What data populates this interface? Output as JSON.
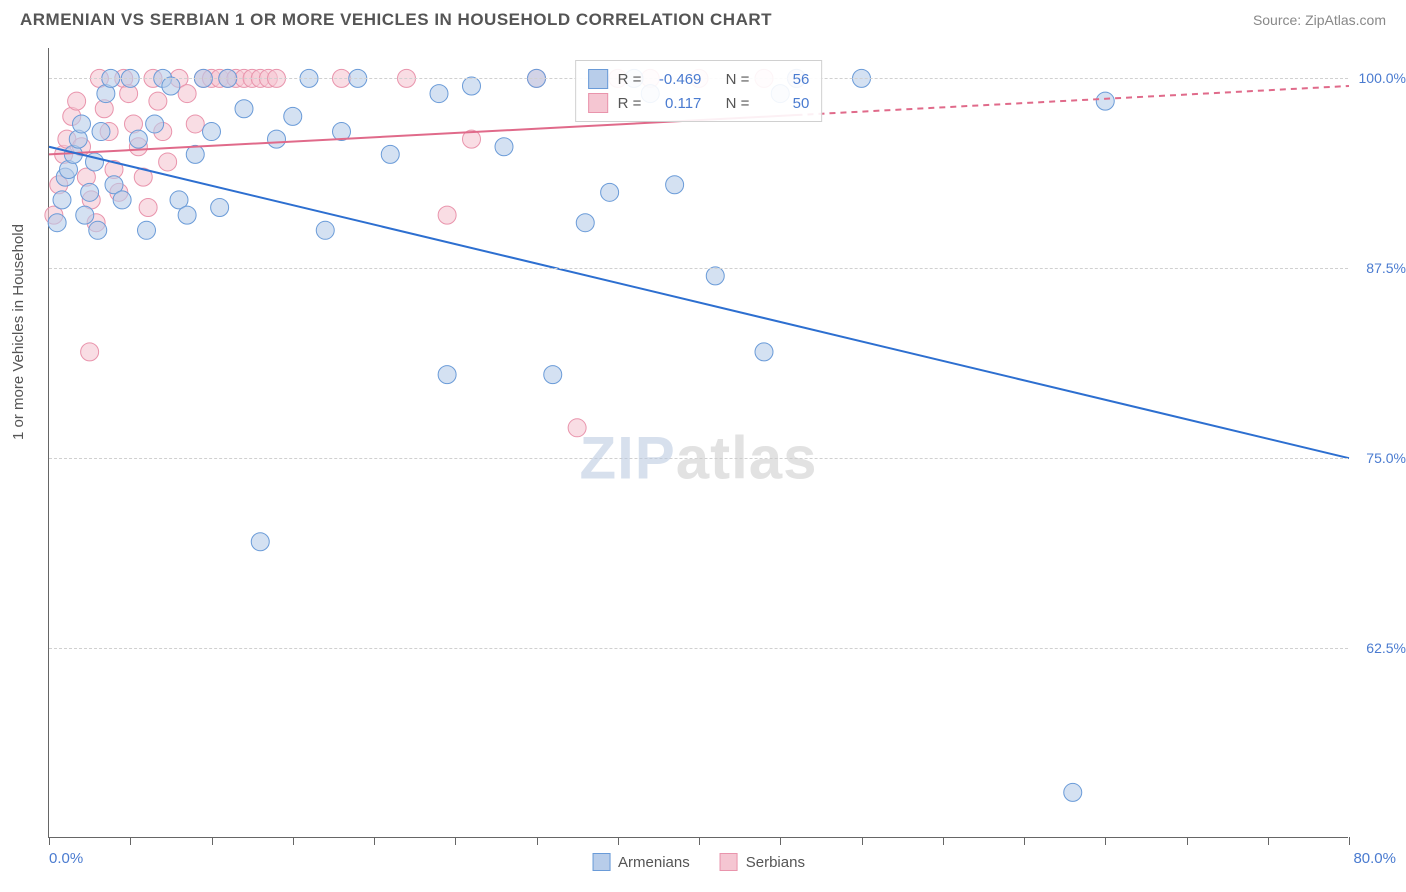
{
  "header": {
    "title": "ARMENIAN VS SERBIAN 1 OR MORE VEHICLES IN HOUSEHOLD CORRELATION CHART",
    "source": "Source: ZipAtlas.com"
  },
  "chart": {
    "type": "scatter",
    "ylabel": "1 or more Vehicles in Household",
    "xlim": [
      0,
      80
    ],
    "ylim": [
      50,
      102
    ],
    "xlabel_min": "0.0%",
    "xlabel_max": "80.0%",
    "yticks": [
      {
        "v": 62.5,
        "label": "62.5%"
      },
      {
        "v": 75.0,
        "label": "75.0%"
      },
      {
        "v": 87.5,
        "label": "87.5%"
      },
      {
        "v": 100.0,
        "label": "100.0%"
      }
    ],
    "xticks": [
      0,
      5,
      10,
      15,
      20,
      25,
      30,
      35,
      40,
      45,
      50,
      55,
      60,
      65,
      70,
      75,
      80
    ],
    "grid_color": "#d0d0d0",
    "background_color": "#ffffff",
    "watermark_zip": "ZIP",
    "watermark_atlas": "atlas",
    "series": {
      "armenians": {
        "label": "Armenians",
        "color_fill": "#b8cdea",
        "color_stroke": "#6a9bd8",
        "r_value": "-0.469",
        "n_value": "56",
        "trend": {
          "x1": 0,
          "y1": 95.5,
          "x2": 80,
          "y2": 75.0,
          "solid_to_x": 80
        },
        "points": [
          [
            0.5,
            90.5
          ],
          [
            0.8,
            92.0
          ],
          [
            1.0,
            93.5
          ],
          [
            1.2,
            94.0
          ],
          [
            1.5,
            95.0
          ],
          [
            1.8,
            96.0
          ],
          [
            2.0,
            97.0
          ],
          [
            2.2,
            91.0
          ],
          [
            2.5,
            92.5
          ],
          [
            2.8,
            94.5
          ],
          [
            3.0,
            90.0
          ],
          [
            3.2,
            96.5
          ],
          [
            3.5,
            99.0
          ],
          [
            3.8,
            100.0
          ],
          [
            4.0,
            93.0
          ],
          [
            4.5,
            92.0
          ],
          [
            5.0,
            100.0
          ],
          [
            5.5,
            96.0
          ],
          [
            6.0,
            90.0
          ],
          [
            6.5,
            97.0
          ],
          [
            7.0,
            100.0
          ],
          [
            7.5,
            99.5
          ],
          [
            8.0,
            92.0
          ],
          [
            8.5,
            91.0
          ],
          [
            9.0,
            95.0
          ],
          [
            9.5,
            100.0
          ],
          [
            10.0,
            96.5
          ],
          [
            10.5,
            91.5
          ],
          [
            11.0,
            100.0
          ],
          [
            12.0,
            98.0
          ],
          [
            13.0,
            69.5
          ],
          [
            14.0,
            96.0
          ],
          [
            15.0,
            97.5
          ],
          [
            16.0,
            100.0
          ],
          [
            17.0,
            90.0
          ],
          [
            18.0,
            96.5
          ],
          [
            19.0,
            100.0
          ],
          [
            21.0,
            95.0
          ],
          [
            24.0,
            99.0
          ],
          [
            24.5,
            80.5
          ],
          [
            26.0,
            99.5
          ],
          [
            28.0,
            95.5
          ],
          [
            30.0,
            100.0
          ],
          [
            31.0,
            80.5
          ],
          [
            33.0,
            90.5
          ],
          [
            34.5,
            92.5
          ],
          [
            36.0,
            100.0
          ],
          [
            37.0,
            99.0
          ],
          [
            38.5,
            93.0
          ],
          [
            41.0,
            87.0
          ],
          [
            44.0,
            82.0
          ],
          [
            45.0,
            99.0
          ],
          [
            46.0,
            100.0
          ],
          [
            50.0,
            100.0
          ],
          [
            63.0,
            53.0
          ],
          [
            65.0,
            98.5
          ]
        ]
      },
      "serbians": {
        "label": "Serbians",
        "color_fill": "#f5c6d2",
        "color_stroke": "#e994ac",
        "r_value": "0.117",
        "n_value": "50",
        "trend": {
          "x1": 0,
          "y1": 95.0,
          "x2": 80,
          "y2": 99.5,
          "solid_to_x": 46
        },
        "points": [
          [
            0.3,
            91.0
          ],
          [
            0.6,
            93.0
          ],
          [
            0.9,
            95.0
          ],
          [
            1.1,
            96.0
          ],
          [
            1.4,
            97.5
          ],
          [
            1.7,
            98.5
          ],
          [
            2.0,
            95.5
          ],
          [
            2.3,
            93.5
          ],
          [
            2.6,
            92.0
          ],
          [
            2.9,
            90.5
          ],
          [
            3.1,
            100.0
          ],
          [
            3.4,
            98.0
          ],
          [
            3.7,
            96.5
          ],
          [
            4.0,
            94.0
          ],
          [
            4.3,
            92.5
          ],
          [
            4.6,
            100.0
          ],
          [
            4.9,
            99.0
          ],
          [
            5.2,
            97.0
          ],
          [
            5.5,
            95.5
          ],
          [
            5.8,
            93.5
          ],
          [
            6.1,
            91.5
          ],
          [
            6.4,
            100.0
          ],
          [
            6.7,
            98.5
          ],
          [
            7.0,
            96.5
          ],
          [
            7.3,
            94.5
          ],
          [
            2.5,
            82.0
          ],
          [
            8.0,
            100.0
          ],
          [
            8.5,
            99.0
          ],
          [
            9.0,
            97.0
          ],
          [
            9.5,
            100.0
          ],
          [
            10.0,
            100.0
          ],
          [
            10.5,
            100.0
          ],
          [
            11.0,
            100.0
          ],
          [
            11.5,
            100.0
          ],
          [
            12.0,
            100.0
          ],
          [
            12.5,
            100.0
          ],
          [
            13.0,
            100.0
          ],
          [
            13.5,
            100.0
          ],
          [
            14.0,
            100.0
          ],
          [
            18.0,
            100.0
          ],
          [
            22.0,
            100.0
          ],
          [
            24.5,
            91.0
          ],
          [
            26.0,
            96.0
          ],
          [
            30.0,
            100.0
          ],
          [
            32.5,
            77.0
          ],
          [
            35.0,
            100.0
          ],
          [
            37.0,
            100.0
          ],
          [
            40.0,
            100.0
          ],
          [
            44.0,
            100.0
          ],
          [
            46.0,
            100.0
          ]
        ]
      }
    },
    "legend_labels": {
      "r_prefix": "R =",
      "n_prefix": "N ="
    }
  }
}
